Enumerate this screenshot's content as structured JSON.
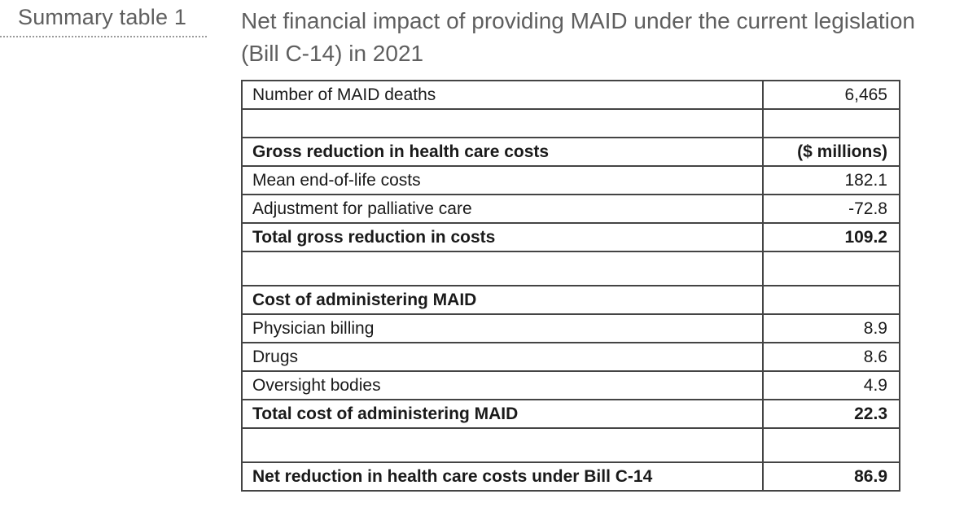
{
  "side_label": "Summary table 1",
  "title": "Net financial impact of providing MAID under the current legislation (Bill C-14) in 2021",
  "rows": {
    "maid_deaths": {
      "label": "Number of MAID deaths",
      "value": "6,465"
    },
    "gross_header": {
      "label": "Gross reduction in health care costs",
      "value": "($ millions)"
    },
    "mean_eol": {
      "label": "Mean end-of-life costs",
      "value": "182.1"
    },
    "palliative_adj": {
      "label": "Adjustment for palliative care",
      "value": "-72.8"
    },
    "total_gross": {
      "label": "Total gross reduction in costs",
      "value": "109.2"
    },
    "admin_header": {
      "label": "Cost of administering MAID",
      "value": ""
    },
    "physician_billing": {
      "label": "Physician billing",
      "value": "8.9"
    },
    "drugs": {
      "label": "Drugs",
      "value": "8.6"
    },
    "oversight": {
      "label": "Oversight bodies",
      "value": "4.9"
    },
    "total_admin": {
      "label": "Total cost of administering MAID",
      "value": "22.3"
    },
    "net_reduction": {
      "label": "Net reduction in health care costs under Bill C-14",
      "value": "86.9"
    }
  }
}
